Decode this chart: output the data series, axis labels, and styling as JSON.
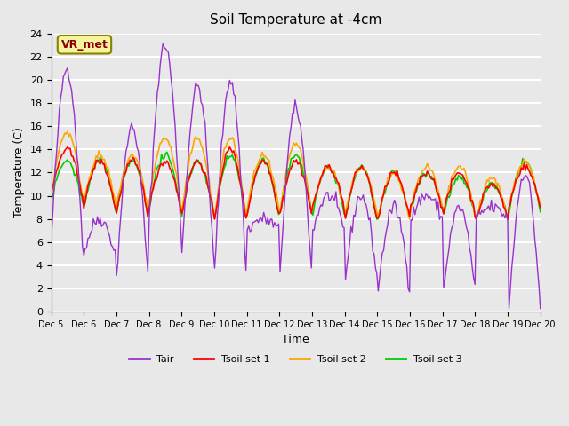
{
  "title": "Soil Temperature at -4cm",
  "xlabel": "Time",
  "ylabel": "Temperature (C)",
  "ylim": [
    0,
    24
  ],
  "xlim": [
    0,
    360
  ],
  "background_color": "#e8e8e8",
  "plot_bg_color": "#e8e8e8",
  "grid_color": "white",
  "annotation_text": "VR_met",
  "annotation_color": "#8B0000",
  "annotation_bg": "#f5f5a0",
  "colors": {
    "Tair": "#9932CC",
    "Tsoil1": "#FF0000",
    "Tsoil2": "#FFA500",
    "Tsoil3": "#00CC00"
  },
  "legend_labels": [
    "Tair",
    "Tsoil set 1",
    "Tsoil set 2",
    "Tsoil set 3"
  ],
  "xtick_labels": [
    "Dec 5",
    "Dec 6",
    "Dec 7",
    "Dec 8",
    "Dec 9",
    "Dec 10",
    "Dec 11",
    "Dec 12",
    "Dec 13",
    "Dec 14",
    "Dec 15",
    "Dec 16",
    "Dec 17",
    "Dec 18",
    "Dec 19",
    "Dec 20"
  ],
  "xtick_positions": [
    0,
    24,
    48,
    72,
    96,
    120,
    144,
    168,
    192,
    216,
    240,
    264,
    288,
    312,
    336,
    360
  ]
}
